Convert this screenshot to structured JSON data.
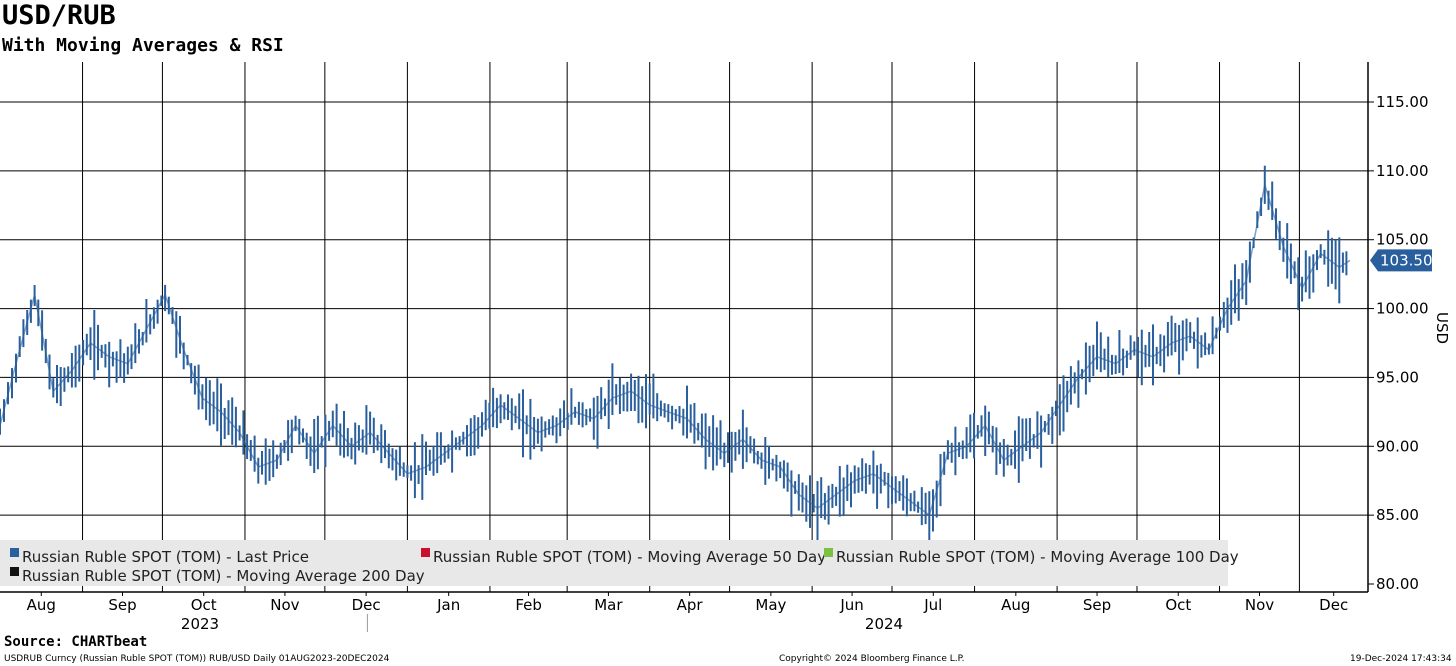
{
  "title": "USD/RUB",
  "subtitle": "With Moving Averages & RSI",
  "source": "Source: CHARTbeat",
  "footer": {
    "left": "USDRUB Curncy (Russian Ruble SPOT (TOM)) RUB/USD  Daily 01AUG2023-20DEC2024",
    "mid": "Copyright© 2024 Bloomberg Finance L.P.",
    "right": "19-Dec-2024 17:43:34"
  },
  "colors": {
    "price": "#2a5f9e",
    "ma50": "#c8102e",
    "ma100": "#7ac142",
    "ma200": "#111111",
    "grid": "#000000",
    "legend_bg": "#e8e8e8",
    "last_label_bg": "#2a5f9e"
  },
  "chart_data": {
    "type": "line",
    "ylabel": "USD",
    "ylim": [
      79.5,
      118
    ],
    "y_ticks": [
      80,
      85,
      90,
      95,
      100,
      105,
      110,
      115
    ],
    "y_tick_labels": [
      "80.00",
      "85.00",
      "90.00",
      "95.00",
      "100.00",
      "105.00",
      "110.00",
      "115.00"
    ],
    "last_price_label": "103.50",
    "last_price": 103.5,
    "months": [
      "Aug",
      "Sep",
      "Oct",
      "Nov",
      "Dec",
      "Jan",
      "Feb",
      "Mar",
      "Apr",
      "May",
      "Jun",
      "Jul",
      "Aug",
      "Sep",
      "Oct",
      "Nov",
      "Dec"
    ],
    "years": [
      "2023",
      "2024"
    ],
    "legend": [
      {
        "label": "Russian Ruble SPOT (TOM) - Last Price",
        "color": "#2a5f9e"
      },
      {
        "label": "Russian Ruble SPOT (TOM) - Moving Average 50 Day",
        "color": "#c8102e"
      },
      {
        "label": "Russian Ruble SPOT (TOM) - Moving Average 100 Day",
        "color": "#7ac142"
      },
      {
        "label": "Russian Ruble SPOT (TOM) - Moving Average 200 Day",
        "color": "#111111"
      }
    ],
    "series": [
      {
        "name": "Russian Ruble SPOT (TOM) - Last Price",
        "x": [
          "2023-08-01",
          "2023-08-07",
          "2023-08-14",
          "2023-08-21",
          "2023-08-28",
          "2023-09-04",
          "2023-09-11",
          "2023-09-18",
          "2023-09-25",
          "2023-10-02",
          "2023-10-09",
          "2023-10-16",
          "2023-10-23",
          "2023-10-30",
          "2023-11-06",
          "2023-11-13",
          "2023-11-20",
          "2023-11-27",
          "2023-12-04",
          "2023-12-11",
          "2023-12-18",
          "2023-12-25",
          "2024-01-01",
          "2024-01-08",
          "2024-01-15",
          "2024-01-22",
          "2024-01-29",
          "2024-02-05",
          "2024-02-12",
          "2024-02-19",
          "2024-02-26",
          "2024-03-04",
          "2024-03-11",
          "2024-03-18",
          "2024-03-25",
          "2024-04-01",
          "2024-04-08",
          "2024-04-15",
          "2024-04-22",
          "2024-04-29",
          "2024-05-06",
          "2024-05-13",
          "2024-05-20",
          "2024-05-27",
          "2024-06-03",
          "2024-06-10",
          "2024-06-17",
          "2024-06-24",
          "2024-07-01",
          "2024-07-08",
          "2024-07-15",
          "2024-07-22",
          "2024-07-29",
          "2024-08-05",
          "2024-08-12",
          "2024-08-19",
          "2024-08-26",
          "2024-09-02",
          "2024-09-09",
          "2024-09-16",
          "2024-09-23",
          "2024-09-30",
          "2024-10-07",
          "2024-10-14",
          "2024-10-21",
          "2024-10-28",
          "2024-11-04",
          "2024-11-11",
          "2024-11-18",
          "2024-11-25",
          "2024-12-02",
          "2024-12-09",
          "2024-12-16",
          "2024-12-20"
        ],
        "values": [
          91.5,
          96.0,
          101.0,
          94.0,
          95.5,
          97.5,
          96.5,
          96.0,
          98.5,
          101.0,
          97.0,
          93.5,
          92.5,
          91.0,
          88.5,
          89.0,
          91.5,
          89.5,
          91.5,
          90.0,
          91.0,
          89.5,
          88.0,
          88.5,
          89.5,
          90.5,
          91.5,
          93.0,
          92.0,
          91.0,
          91.5,
          92.5,
          92.0,
          93.5,
          94.0,
          93.0,
          92.5,
          92.0,
          90.5,
          89.5,
          90.5,
          89.0,
          88.5,
          86.5,
          85.5,
          86.5,
          87.5,
          88.0,
          87.0,
          86.0,
          85.0,
          89.5,
          90.0,
          91.5,
          89.0,
          90.0,
          91.0,
          93.0,
          95.0,
          96.5,
          96.0,
          97.0,
          96.5,
          97.5,
          98.0,
          97.0,
          100.0,
          102.0,
          109.0,
          104.5,
          101.5,
          104.0,
          103.0,
          103.5
        ]
      }
    ]
  }
}
